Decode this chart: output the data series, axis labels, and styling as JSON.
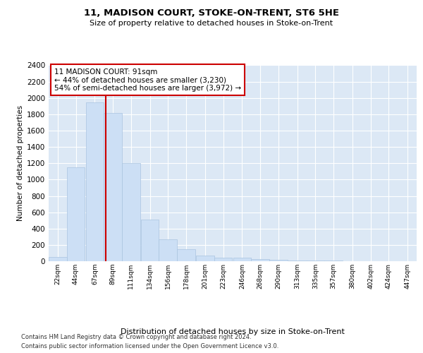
{
  "title": "11, MADISON COURT, STOKE-ON-TRENT, ST6 5HE",
  "subtitle": "Size of property relative to detached houses in Stoke-on-Trent",
  "xlabel": "Distribution of detached houses by size in Stoke-on-Trent",
  "ylabel": "Number of detached properties",
  "footnote1": "Contains HM Land Registry data © Crown copyright and database right 2024.",
  "footnote2": "Contains public sector information licensed under the Open Government Licence v3.0.",
  "annotation_title": "11 MADISON COURT: 91sqm",
  "annotation_line1": "← 44% of detached houses are smaller (3,230)",
  "annotation_line2": "54% of semi-detached houses are larger (3,972) →",
  "bin_starts": [
    22,
    44,
    67,
    89,
    111,
    134,
    156,
    178,
    201,
    223,
    246,
    268,
    290,
    313,
    335,
    357,
    380,
    402,
    424,
    447
  ],
  "bin_width": 22,
  "bar_heights": [
    50,
    1150,
    1950,
    1820,
    1200,
    510,
    265,
    150,
    70,
    40,
    40,
    30,
    15,
    10,
    5,
    5,
    3,
    2,
    2,
    2
  ],
  "bar_color": "#ccdff5",
  "bar_edge_color": "#aac4e0",
  "red_line_x": 91,
  "red_line_color": "#cc0000",
  "annotation_box_color": "#cc0000",
  "ylim": [
    0,
    2400
  ],
  "yticks": [
    0,
    200,
    400,
    600,
    800,
    1000,
    1200,
    1400,
    1600,
    1800,
    2000,
    2200,
    2400
  ],
  "bg_color": "#dce8f5",
  "fig_bg_color": "#ffffff",
  "grid_color": "#ffffff",
  "title_fontsize": 9.5,
  "subtitle_fontsize": 8,
  "ylabel_fontsize": 7.5,
  "xlabel_fontsize": 8,
  "ytick_fontsize": 7.5,
  "xtick_fontsize": 6.5,
  "annotation_fontsize": 7.5,
  "footnote_fontsize": 6
}
